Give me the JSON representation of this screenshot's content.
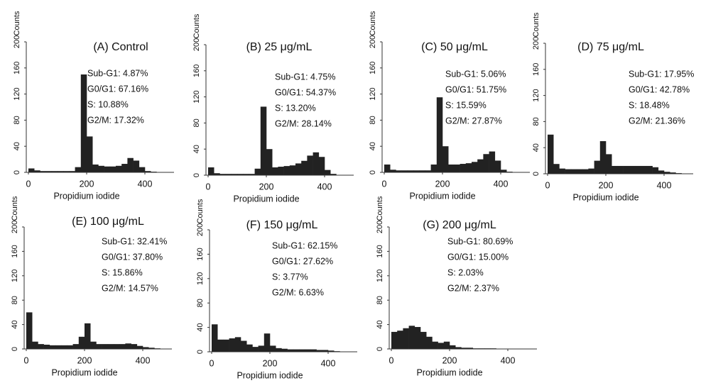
{
  "chart_data": [
    {
      "type": "histogram",
      "title": "(A) Control",
      "annotations": [
        "Sub-G1: 4.87%",
        "G0/G1: 67.16%",
        "S: 10.88%",
        "G2/M: 17.32%"
      ],
      "xlabel": "Propidium iodide",
      "ylabel": "Counts",
      "color": "#222222",
      "bins": [
        0,
        20,
        40,
        60,
        80,
        100,
        120,
        140,
        160,
        180,
        200,
        220,
        240,
        260,
        280,
        300,
        320,
        340,
        360,
        380,
        400,
        420,
        440,
        460,
        480,
        500
      ],
      "values": [
        6,
        3,
        2,
        2,
        2,
        2,
        2,
        2,
        8,
        150,
        55,
        12,
        10,
        9,
        9,
        10,
        13,
        22,
        18,
        8,
        2,
        1,
        0,
        0,
        0
      ],
      "xlim": [
        0,
        500
      ],
      "ylim": [
        0,
        200
      ],
      "xticks": [
        0,
        200,
        400
      ],
      "yticks": [
        0,
        40,
        80,
        120,
        160,
        200
      ]
    },
    {
      "type": "histogram",
      "title": "(B) 25 μg/mL",
      "annotations": [
        "Sub-G1: 4.75%",
        "G0/G1: 54.37%",
        "S: 13.20%",
        "G2/M: 28.14%"
      ],
      "xlabel": "Propidium iodide",
      "ylabel": "Counts",
      "color": "#222222",
      "bins": [
        0,
        20,
        40,
        60,
        80,
        100,
        120,
        140,
        160,
        180,
        200,
        220,
        240,
        260,
        280,
        300,
        320,
        340,
        360,
        380,
        400,
        420,
        440,
        460,
        480,
        500
      ],
      "values": [
        12,
        3,
        2,
        2,
        2,
        2,
        2,
        2,
        10,
        105,
        40,
        12,
        13,
        14,
        15,
        18,
        22,
        30,
        35,
        28,
        8,
        2,
        0,
        0,
        0
      ],
      "xlim": [
        0,
        500
      ],
      "ylim": [
        0,
        200
      ],
      "xticks": [
        0,
        200,
        400
      ],
      "yticks": [
        0,
        40,
        80,
        120,
        160,
        200
      ]
    },
    {
      "type": "histogram",
      "title": "(C) 50 μg/mL",
      "annotations": [
        "Sub-G1: 5.06%",
        "G0/G1: 51.75%",
        "S: 15.59%",
        "G2/M: 27.87%"
      ],
      "xlabel": "Propidium iodide",
      "ylabel": "Counts",
      "color": "#222222",
      "bins": [
        0,
        20,
        40,
        60,
        80,
        100,
        120,
        140,
        160,
        180,
        200,
        220,
        240,
        260,
        280,
        300,
        320,
        340,
        360,
        380,
        400,
        420,
        440,
        460,
        480,
        500
      ],
      "values": [
        12,
        4,
        3,
        3,
        3,
        3,
        3,
        3,
        12,
        115,
        40,
        12,
        12,
        13,
        14,
        16,
        20,
        28,
        32,
        18,
        4,
        1,
        0,
        0,
        0
      ],
      "xlim": [
        0,
        500
      ],
      "ylim": [
        0,
        200
      ],
      "xticks": [
        0,
        200,
        400
      ],
      "yticks": [
        0,
        40,
        80,
        120,
        160,
        200
      ]
    },
    {
      "type": "histogram",
      "title": "(D) 75 μg/mL",
      "annotations": [
        "Sub-G1: 17.95%",
        "G0/G1: 42.78%",
        "S: 18.48%",
        "G2/M: 21.36%"
      ],
      "xlabel": "Propidium iodide",
      "ylabel": "Counts",
      "color": "#222222",
      "bins": [
        0,
        20,
        40,
        60,
        80,
        100,
        120,
        140,
        160,
        180,
        200,
        220,
        240,
        260,
        280,
        300,
        320,
        340,
        360,
        380,
        400,
        420,
        440,
        460,
        480,
        500
      ],
      "values": [
        60,
        15,
        8,
        7,
        7,
        7,
        7,
        8,
        20,
        50,
        30,
        12,
        12,
        12,
        12,
        12,
        12,
        12,
        10,
        5,
        3,
        2,
        1,
        0,
        0
      ],
      "xlim": [
        0,
        500
      ],
      "ylim": [
        0,
        200
      ],
      "xticks": [
        0,
        200,
        400
      ],
      "yticks": [
        0,
        40,
        80,
        120,
        160,
        200
      ]
    },
    {
      "type": "histogram",
      "title": "(E) 100 μg/mL",
      "annotations": [
        "Sub-G1: 32.41%",
        "G0/G1: 37.80%",
        "S: 15.86%",
        "G2/M: 14.57%"
      ],
      "xlabel": "Propidium iodide",
      "ylabel": "Counts",
      "color": "#222222",
      "bins": [
        0,
        20,
        40,
        60,
        80,
        100,
        120,
        140,
        160,
        180,
        200,
        220,
        240,
        260,
        280,
        300,
        320,
        340,
        360,
        380,
        400,
        420,
        440,
        460,
        480,
        500
      ],
      "values": [
        60,
        12,
        8,
        7,
        6,
        6,
        6,
        6,
        8,
        20,
        42,
        12,
        8,
        8,
        8,
        8,
        8,
        9,
        8,
        5,
        3,
        2,
        1,
        0,
        0
      ],
      "xlim": [
        0,
        500
      ],
      "ylim": [
        0,
        200
      ],
      "xticks": [
        0,
        200,
        400
      ],
      "yticks": [
        0,
        40,
        80,
        120,
        160,
        200
      ]
    },
    {
      "type": "histogram",
      "title": "(F) 150 μg/mL",
      "annotations": [
        "Sub-G1: 62.15%",
        "G0/G1: 27.62%",
        "S: 3.77%",
        "G2/M: 6.63%"
      ],
      "xlabel": "Propidium iodide",
      "ylabel": "Counts",
      "color": "#222222",
      "bins": [
        0,
        20,
        40,
        60,
        80,
        100,
        120,
        140,
        160,
        180,
        200,
        220,
        240,
        260,
        280,
        300,
        320,
        340,
        360,
        380,
        400,
        420,
        440,
        460,
        480,
        500
      ],
      "values": [
        45,
        20,
        20,
        22,
        24,
        18,
        12,
        8,
        10,
        30,
        10,
        6,
        5,
        4,
        4,
        4,
        4,
        4,
        3,
        3,
        2,
        1,
        0,
        0,
        0
      ],
      "xlim": [
        0,
        500
      ],
      "ylim": [
        0,
        200
      ],
      "xticks": [
        0,
        200,
        400
      ],
      "yticks": [
        0,
        40,
        80,
        120,
        160,
        200
      ]
    },
    {
      "type": "histogram",
      "title": "(G) 200 μg/mL",
      "annotations": [
        "Sub-G1: 80.69%",
        "G0/G1: 15.00%",
        "S: 2.03%",
        "G2/M: 2.37%"
      ],
      "xlabel": "Propidium iodide",
      "ylabel": "Counts",
      "color": "#222222",
      "bins": [
        0,
        20,
        40,
        60,
        80,
        100,
        120,
        140,
        160,
        180,
        200,
        220,
        240,
        260,
        280,
        300,
        320,
        340,
        360,
        380,
        400,
        420,
        440,
        460,
        480,
        500
      ],
      "values": [
        28,
        30,
        34,
        38,
        36,
        28,
        20,
        12,
        10,
        12,
        6,
        3,
        2,
        2,
        1,
        1,
        1,
        1,
        0,
        0,
        0,
        0,
        0,
        0,
        0
      ],
      "xlim": [
        0,
        500
      ],
      "ylim": [
        0,
        200
      ],
      "xticks": [
        0,
        200,
        400
      ],
      "yticks": [
        0,
        40,
        80,
        120,
        160,
        200
      ]
    }
  ]
}
